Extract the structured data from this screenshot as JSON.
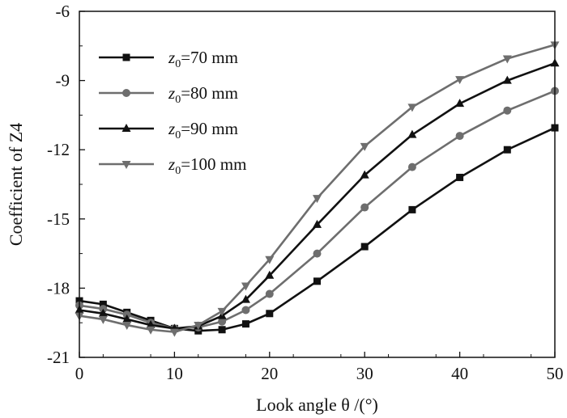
{
  "chart_data": {
    "type": "line",
    "xlabel": "Look angle  θ /(°)",
    "ylabel": "Coefficient of Z4",
    "xlim": [
      0,
      50
    ],
    "ylim": [
      -21,
      -6
    ],
    "xticks": [
      "0",
      "10",
      "20",
      "30",
      "40",
      "50"
    ],
    "yticks": [
      "-21",
      "-18",
      "-15",
      "-12",
      "-9",
      "-6"
    ],
    "grid": false,
    "legend_position": "top-left",
    "x": [
      0,
      2.5,
      5,
      7.5,
      10,
      12.5,
      15,
      17.5,
      20,
      25,
      30,
      35,
      40,
      45,
      50
    ],
    "series": [
      {
        "name": "z0=70 mm",
        "legend_main": "z",
        "legend_sub": "0",
        "legend_rest": "=70 mm",
        "marker": "square",
        "color": "#111111",
        "values": [
          -18.55,
          -18.7,
          -19.05,
          -19.4,
          -19.75,
          -19.85,
          -19.8,
          -19.55,
          -19.1,
          -17.7,
          -16.2,
          -14.6,
          -13.2,
          -12.0,
          -11.05
        ]
      },
      {
        "name": "z0=80 mm",
        "legend_main": "z",
        "legend_sub": "0",
        "legend_rest": "=80 mm",
        "marker": "circle",
        "color": "#6e6e6e",
        "values": [
          -18.75,
          -18.9,
          -19.15,
          -19.5,
          -19.75,
          -19.7,
          -19.45,
          -18.95,
          -18.25,
          -16.5,
          -14.5,
          -12.75,
          -11.4,
          -10.3,
          -9.45
        ]
      },
      {
        "name": "z0=90 mm",
        "legend_main": "z",
        "legend_sub": "0",
        "legend_rest": "=90 mm",
        "marker": "triangle-up",
        "color": "#111111",
        "values": [
          -18.95,
          -19.1,
          -19.35,
          -19.6,
          -19.75,
          -19.65,
          -19.2,
          -18.5,
          -17.45,
          -15.25,
          -13.1,
          -11.35,
          -10.0,
          -9.0,
          -8.25
        ]
      },
      {
        "name": "z0=100 mm",
        "legend_main": "z",
        "legend_sub": "0",
        "legend_rest": "=100 mm",
        "marker": "triangle-down",
        "color": "#6e6e6e",
        "values": [
          -19.2,
          -19.35,
          -19.6,
          -19.8,
          -19.9,
          -19.6,
          -19.0,
          -17.9,
          -16.75,
          -14.1,
          -11.85,
          -10.15,
          -8.95,
          -8.05,
          -7.45
        ]
      }
    ]
  }
}
